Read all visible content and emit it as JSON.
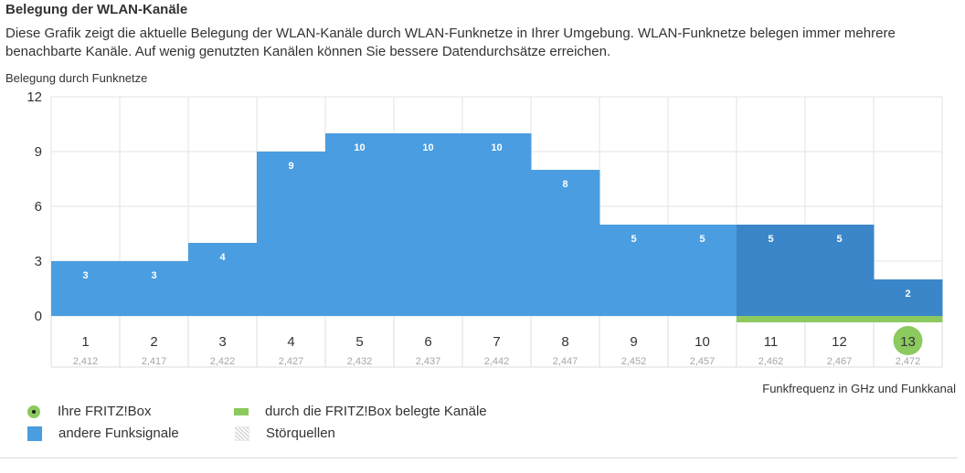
{
  "header": {
    "title": "Belegung der WLAN-Kanäle",
    "description": "Diese Grafik zeigt die aktuelle Belegung der WLAN-Kanäle durch WLAN-Funknetze in Ihrer Umgebung. WLAN-Funknetze belegen immer mehrere benachbarte Kanäle. Auf wenig genutzten Kanälen können Sie bessere Datendurchsätze erreichen."
  },
  "chart_data": {
    "type": "bar",
    "ylabel": "Belegung durch Funknetze",
    "xlabel": "Funkfrequenz in GHz und Funkkanal",
    "ylim": [
      0,
      12
    ],
    "yticks": [
      0,
      3,
      6,
      9,
      12
    ],
    "grid": true,
    "categories": [
      "1",
      "2",
      "3",
      "4",
      "5",
      "6",
      "7",
      "8",
      "9",
      "10",
      "11",
      "12",
      "13"
    ],
    "frequencies": [
      "2,412",
      "2,417",
      "2,422",
      "2,427",
      "2,432",
      "2,437",
      "2,442",
      "2,447",
      "2,452",
      "2,457",
      "2,462",
      "2,467",
      "2,472"
    ],
    "values": [
      3,
      3,
      4,
      9,
      10,
      10,
      10,
      8,
      5,
      5,
      5,
      5,
      2
    ],
    "own_channel": "13",
    "occupied_by_fritzbox": [
      "11",
      "12",
      "13"
    ],
    "legend_placement": "bottom-left"
  },
  "legend": {
    "own_box": "Ihre FRITZ!Box",
    "other_signals": "andere Funksignale",
    "occupied_channels": "durch die FRITZ!Box belegte Kanäle",
    "interference": "Störquellen"
  },
  "colors": {
    "bar": "#4a9de0",
    "bar_fritzbox": "#3a86c8",
    "fritzbox_green": "#8cc95e",
    "grid": "#e3e3e3"
  }
}
